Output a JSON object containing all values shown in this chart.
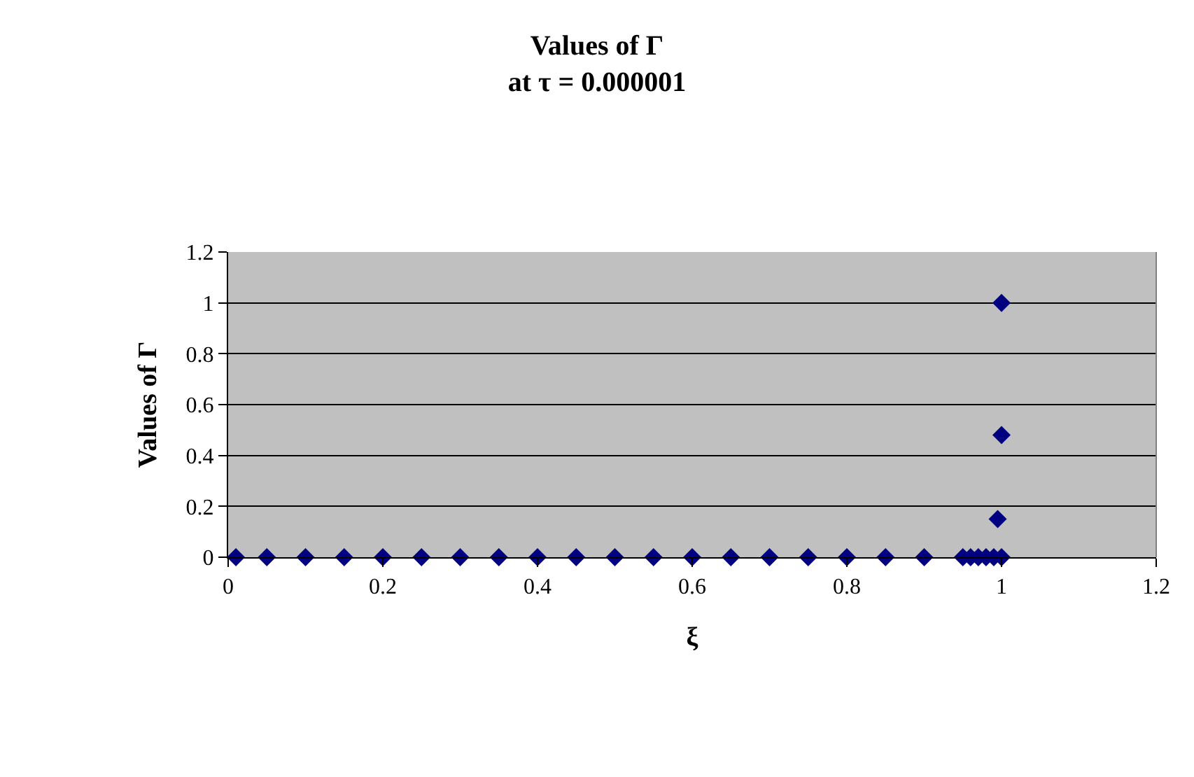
{
  "chart_data": {
    "type": "scatter",
    "title": "Values of Γ\nat τ = 0.000001",
    "xlabel": "ξ",
    "ylabel": "Values of Γ",
    "series": [
      {
        "color": "#000080",
        "x": [
          0.01,
          0.05,
          0.1,
          0.15,
          0.2,
          0.25,
          0.3,
          0.35,
          0.4,
          0.45,
          0.5,
          0.55,
          0.6,
          0.65,
          0.7,
          0.75,
          0.8,
          0.85,
          0.9,
          0.95,
          0.96,
          0.97,
          0.98,
          0.99,
          1.0,
          0.995,
          1.0,
          1.0
        ],
        "values": [
          0,
          0,
          0,
          0,
          0,
          0,
          0,
          0,
          0,
          0,
          0,
          0,
          0,
          0,
          0,
          0,
          0,
          0,
          0,
          0,
          0,
          0,
          0,
          0,
          0,
          0.15,
          0.48,
          1.0
        ]
      }
    ],
    "xlim": [
      0,
      1.2
    ],
    "xticks": [
      0,
      0.2,
      0.4,
      0.6,
      0.8,
      1,
      1.2
    ],
    "ylim": [
      0,
      1.2
    ],
    "yticks": [
      0,
      0.2,
      0.4,
      0.6,
      0.8,
      1,
      1.2
    ],
    "grid": "y",
    "marker": "diamond",
    "legend": false
  }
}
